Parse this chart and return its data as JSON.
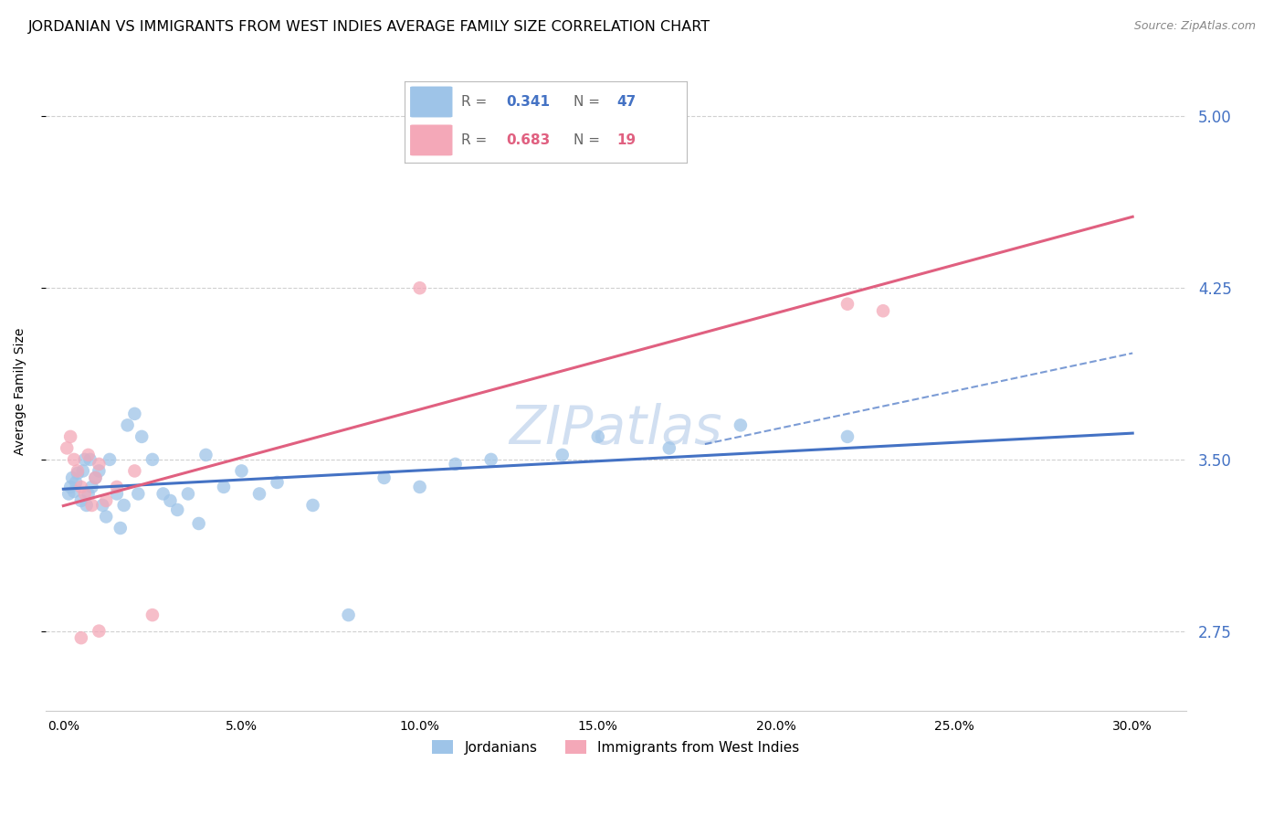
{
  "title": "JORDANIAN VS IMMIGRANTS FROM WEST INDIES AVERAGE FAMILY SIZE CORRELATION CHART",
  "source": "Source: ZipAtlas.com",
  "ylabel": "Average Family Size",
  "xlabel_ticks": [
    "0.0%",
    "5.0%",
    "10.0%",
    "15.0%",
    "20.0%",
    "25.0%",
    "30.0%"
  ],
  "xlabel_vals": [
    0.0,
    5.0,
    10.0,
    15.0,
    20.0,
    25.0,
    30.0
  ],
  "ylim": [
    2.4,
    5.2
  ],
  "xlim": [
    -0.5,
    31.5
  ],
  "yticks": [
    2.75,
    3.5,
    4.25,
    5.0
  ],
  "right_ytick_color": "#4472c4",
  "grid_color": "#d0d0d0",
  "blue_color": "#9ec4e8",
  "blue_line_color": "#4472c4",
  "pink_color": "#f4a8b8",
  "pink_line_color": "#e06080",
  "watermark_color": "#ccdcf0",
  "title_fontsize": 11.5,
  "axis_label_fontsize": 10,
  "tick_fontsize": 10,
  "blue_x": [
    0.15,
    0.2,
    0.25,
    0.3,
    0.35,
    0.4,
    0.5,
    0.55,
    0.6,
    0.65,
    0.7,
    0.75,
    0.8,
    0.9,
    1.0,
    1.1,
    1.2,
    1.3,
    1.5,
    1.6,
    1.7,
    1.8,
    2.0,
    2.1,
    2.2,
    2.5,
    2.8,
    3.0,
    3.2,
    3.5,
    3.8,
    4.0,
    4.5,
    5.0,
    6.0,
    7.0,
    8.0,
    10.0,
    11.0,
    12.0,
    14.0,
    15.0,
    17.0,
    19.0,
    22.0,
    5.5,
    9.0
  ],
  "blue_y": [
    3.35,
    3.38,
    3.42,
    3.36,
    3.4,
    3.44,
    3.32,
    3.45,
    3.5,
    3.3,
    3.35,
    3.5,
    3.38,
    3.42,
    3.45,
    3.3,
    3.25,
    3.5,
    3.35,
    3.2,
    3.3,
    3.65,
    3.7,
    3.35,
    3.6,
    3.5,
    3.35,
    3.32,
    3.28,
    3.35,
    3.22,
    3.52,
    3.38,
    3.45,
    3.4,
    3.3,
    2.82,
    3.38,
    3.48,
    3.5,
    3.52,
    3.6,
    3.55,
    3.65,
    3.6,
    3.35,
    3.42
  ],
  "pink_x": [
    0.1,
    0.2,
    0.3,
    0.4,
    0.5,
    0.6,
    0.7,
    0.8,
    0.9,
    1.0,
    1.2,
    1.5,
    2.0,
    2.5,
    10.0,
    22.0,
    23.0,
    1.0,
    0.5
  ],
  "pink_y": [
    3.55,
    3.6,
    3.5,
    3.45,
    3.38,
    3.35,
    3.52,
    3.3,
    3.42,
    3.48,
    3.32,
    3.38,
    3.45,
    2.82,
    4.25,
    4.18,
    4.15,
    2.75,
    2.72
  ]
}
